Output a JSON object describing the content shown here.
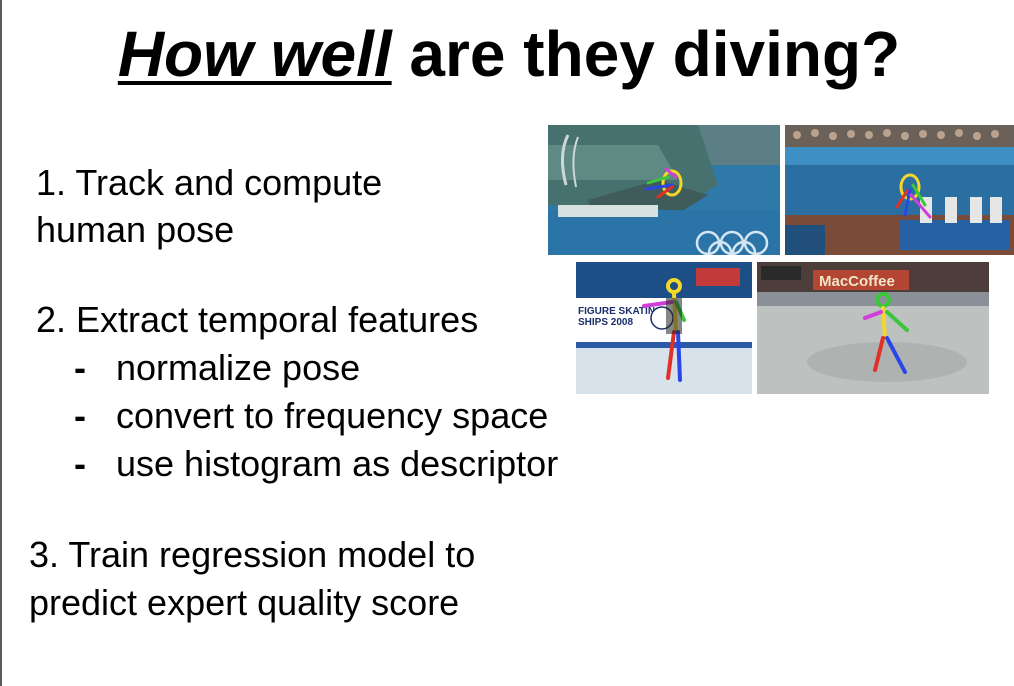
{
  "title": {
    "emphasis": "How well",
    "rest": " are they diving?"
  },
  "steps": [
    {
      "lines": [
        "1. Track and compute",
        "human pose"
      ]
    },
    {
      "lines": [
        "2. Extract temporal features"
      ]
    },
    {
      "lines": [
        "3. Train regression model to",
        "predict expert quality score"
      ]
    }
  ],
  "substeps": [
    {
      "dash": "-",
      "text": "normalize pose"
    },
    {
      "dash": "-",
      "text": "convert to frequency space"
    },
    {
      "dash": "-",
      "text": "use histogram as descriptor"
    }
  ],
  "photos": {
    "skating1_banner": "FIGURE SKATING",
    "skating1_banner2": "SHIPS 2008",
    "skating2_ad": "MacCoffee"
  },
  "colors": {
    "pool_blue": "#2f79a8",
    "ice": "#dfe7ee",
    "pose_yellow": "#f3d82a",
    "pose_green": "#3cc63c",
    "pose_red": "#e0302a",
    "pose_blue": "#2a47e6",
    "pose_magenta": "#d040d8"
  }
}
